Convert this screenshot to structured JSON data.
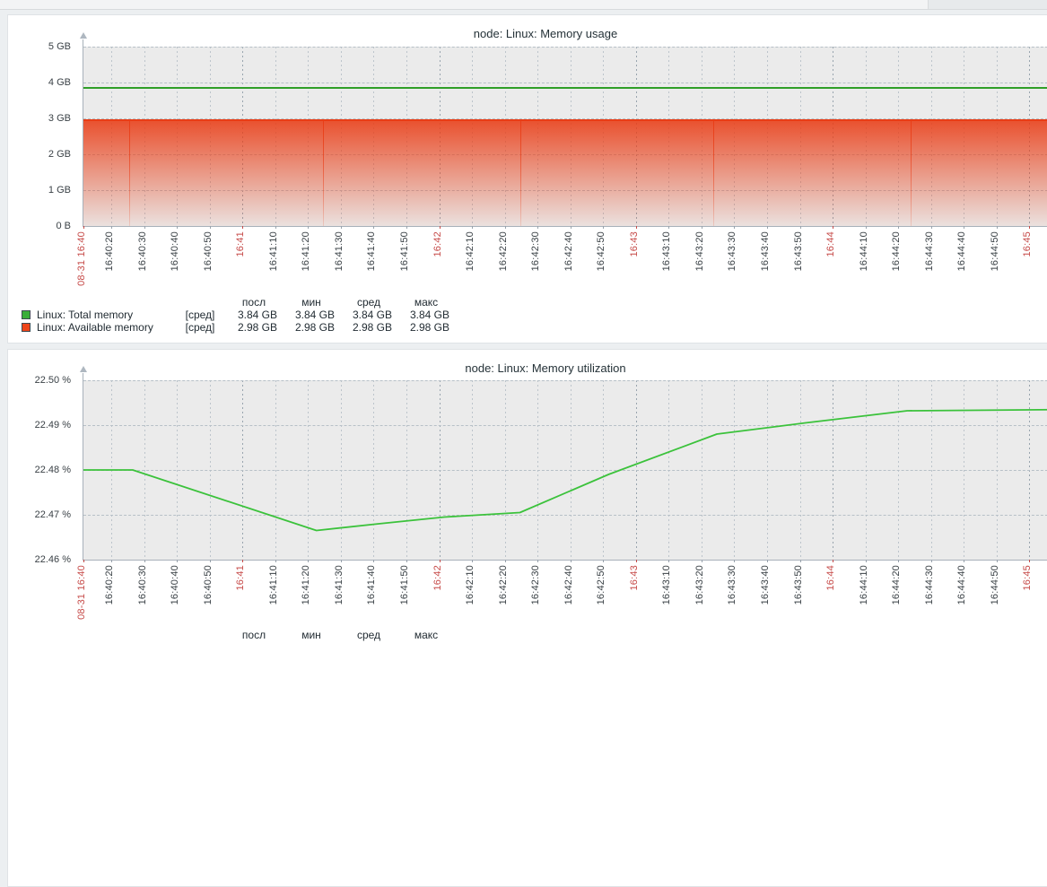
{
  "page": {
    "background": "#eceff1",
    "card_background": "#ffffff",
    "plot_background": "#ebebeb"
  },
  "time_axis": {
    "start_label": "08-31 16:40",
    "end_label": "16:45",
    "ticks": [
      {
        "label": "08-31 16:40",
        "red": true
      },
      {
        "label": "16:40:20"
      },
      {
        "label": "16:40:30"
      },
      {
        "label": "16:40:40"
      },
      {
        "label": "16:40:50"
      },
      {
        "label": "16:41",
        "red": true
      },
      {
        "label": "16:41:10"
      },
      {
        "label": "16:41:20"
      },
      {
        "label": "16:41:30"
      },
      {
        "label": "16:41:40"
      },
      {
        "label": "16:41:50"
      },
      {
        "label": "16:42",
        "red": true
      },
      {
        "label": "16:42:10"
      },
      {
        "label": "16:42:20"
      },
      {
        "label": "16:42:30"
      },
      {
        "label": "16:42:40"
      },
      {
        "label": "16:42:50"
      },
      {
        "label": "16:43",
        "red": true
      },
      {
        "label": "16:43:10"
      },
      {
        "label": "16:43:20"
      },
      {
        "label": "16:43:30"
      },
      {
        "label": "16:43:40"
      },
      {
        "label": "16:43:50"
      },
      {
        "label": "16:44",
        "red": true
      },
      {
        "label": "16:44:10"
      },
      {
        "label": "16:44:20"
      },
      {
        "label": "16:44:30"
      },
      {
        "label": "16:44:40"
      },
      {
        "label": "16:44:50"
      },
      {
        "label": "16:45",
        "red": true
      }
    ]
  },
  "chart_data": [
    {
      "type": "area",
      "title": "node: Linux: Memory usage",
      "ylabel": "",
      "y_ticks": [
        "5 GB",
        "4 GB",
        "3 GB",
        "2 GB",
        "1 GB",
        "0 B"
      ],
      "y_range": [
        0,
        5
      ],
      "grid": true,
      "legend_position": "bottom",
      "series": [
        {
          "name": "Linux: Total memory",
          "style": "hline",
          "color": "#2f9e27",
          "value": 3.84,
          "unit": "GB"
        },
        {
          "name": "Linux: Available memory",
          "style": "gradient-area",
          "color": "#e93d16",
          "value": 2.98,
          "unit": "GB"
        }
      ],
      "segment_gap_seconds": [
        14,
        73,
        133,
        192,
        252
      ],
      "legend": {
        "columns": [
          "посл",
          "мин",
          "сред",
          "макс"
        ],
        "rows": [
          {
            "name": "Linux: Total memory",
            "func": "[сред]",
            "color": "#3aae3a",
            "values": [
              "3.84 GB",
              "3.84 GB",
              "3.84 GB",
              "3.84 GB"
            ]
          },
          {
            "name": "Linux: Available memory",
            "func": "[сред]",
            "color": "#ee4419",
            "values": [
              "2.98 GB",
              "2.98 GB",
              "2.98 GB",
              "2.98 GB"
            ]
          }
        ]
      }
    },
    {
      "type": "line",
      "title": "node: Linux: Memory utilization",
      "ylabel": "",
      "y_ticks": [
        "22.50 %",
        "22.49 %",
        "22.48 %",
        "22.47 %",
        "22.46 %"
      ],
      "y_range": [
        22.46,
        22.5
      ],
      "grid": true,
      "legend_position": "bottom",
      "series": [
        {
          "name": "Linux: Memory utilization",
          "style": "line",
          "color": "#3bc23b",
          "unit": "%",
          "points": [
            [
              0,
              22.48
            ],
            [
              15,
              22.48
            ],
            [
              71,
              22.4665
            ],
            [
              90,
              22.468
            ],
            [
              110,
              22.4695
            ],
            [
              133,
              22.4705
            ],
            [
              160,
              22.479
            ],
            [
              193,
              22.488
            ],
            [
              220,
              22.4905
            ],
            [
              251,
              22.4932
            ],
            [
              304,
              22.4935
            ]
          ]
        }
      ],
      "legend": {
        "columns": [
          "посл",
          "мин",
          "сред",
          "макс"
        ],
        "rows": []
      }
    }
  ]
}
